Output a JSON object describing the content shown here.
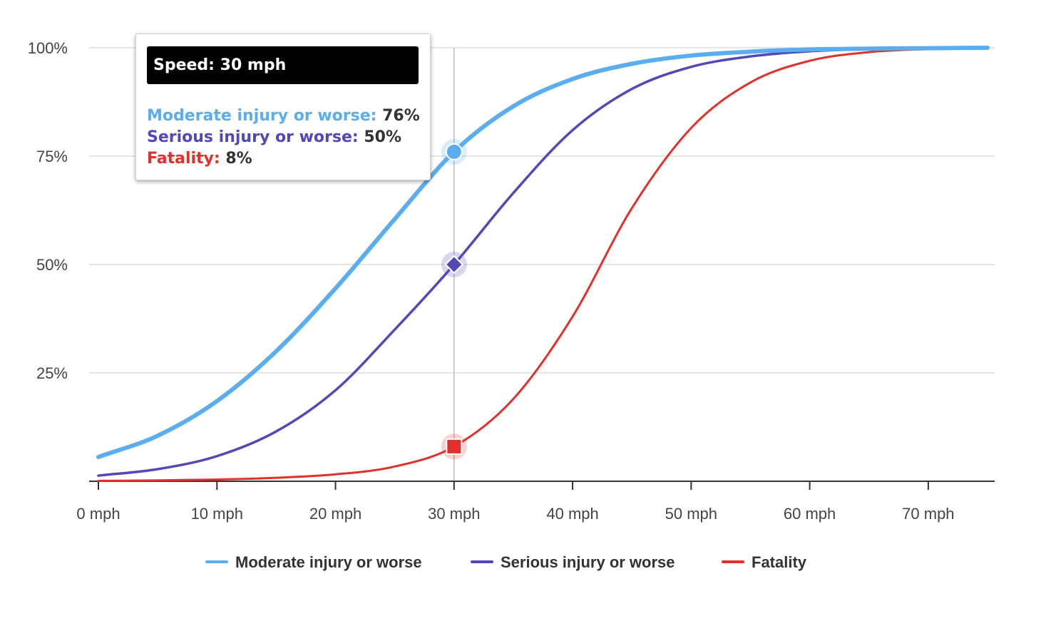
{
  "colors": {
    "moderate": "#5aaef0",
    "serious": "#5249b8",
    "fatality": "#e2302a",
    "grid": "#dddddd",
    "crosshair": "#bbbbbb",
    "axis": "#333333"
  },
  "tooltip": {
    "title": "Speed: 30 mph",
    "rows": [
      {
        "label": "Moderate injury or worse:",
        "value": "76%",
        "color": "#5aaef0"
      },
      {
        "label": "Serious injury or worse:",
        "value": "50%",
        "color": "#5249b8"
      },
      {
        "label": "Fatality:",
        "value": "8%",
        "color": "#e2302a"
      }
    ]
  },
  "chart_data": {
    "type": "line",
    "xlabel": "",
    "ylabel": "",
    "xlim": [
      0,
      75
    ],
    "ylim": [
      0,
      100
    ],
    "x_ticks": [
      0,
      10,
      20,
      30,
      40,
      50,
      60,
      70
    ],
    "x_tick_labels": [
      "0 mph",
      "10 mph",
      "20 mph",
      "30 mph",
      "40 mph",
      "50 mph",
      "60 mph",
      "70 mph"
    ],
    "y_ticks": [
      25,
      50,
      75,
      100
    ],
    "y_tick_labels": [
      "25%",
      "50%",
      "75%",
      "100%"
    ],
    "grid": "horizontal",
    "legend_position": "bottom",
    "crosshair_x": 30,
    "x": [
      0,
      5,
      10,
      15,
      20,
      25,
      30,
      35,
      40,
      45,
      50,
      55,
      60,
      65,
      70,
      75
    ],
    "series": [
      {
        "name": "Moderate injury or worse",
        "color": "#5aaef0",
        "marker": "circle",
        "values": [
          5.6,
          10.5,
          18.5,
          30.0,
          44.5,
          60.5,
          76,
          86.5,
          92.8,
          96.3,
          98.2,
          99.1,
          99.6,
          99.8,
          99.9,
          100
        ]
      },
      {
        "name": "Serious injury or worse",
        "color": "#5249b8",
        "marker": "diamond",
        "values": [
          1.3,
          2.8,
          5.8,
          11.5,
          21.0,
          35.0,
          50,
          66.5,
          81.0,
          90.5,
          95.6,
          98.0,
          99.2,
          99.7,
          99.9,
          100
        ]
      },
      {
        "name": "Fatality",
        "color": "#e2302a",
        "marker": "square",
        "values": [
          0.1,
          0.2,
          0.4,
          0.8,
          1.6,
          3.4,
          8,
          19.0,
          38.0,
          63.0,
          81.5,
          92.0,
          97.0,
          99.0,
          99.7,
          100
        ]
      }
    ]
  }
}
